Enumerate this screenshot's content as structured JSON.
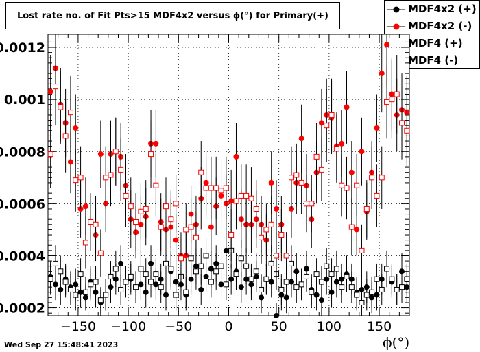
{
  "chart_data": {
    "type": "scatter",
    "title": "Lost rate no. of Fit Pts>15 MDF4x2 versus ϕ(°) for Primary(+)",
    "xlabel": "ϕ(°)",
    "ylabel": "",
    "xlim": [
      -180,
      180
    ],
    "ylim": [
      0.00017,
      0.00125
    ],
    "x_ticks": [
      -150,
      -100,
      -50,
      0,
      50,
      100,
      150
    ],
    "x_tick_labels": [
      "−150",
      "−100",
      "−50",
      "0",
      "50",
      "100",
      "150"
    ],
    "y_ticks": [
      0.0002,
      0.0004,
      0.0006,
      0.0008,
      0.001,
      0.0012
    ],
    "y_tick_labels": [
      "0.0002",
      "0.0004",
      "0.0006",
      "0.0008",
      "0.001",
      "0.0012"
    ],
    "grid": true,
    "legend_position": "top-right",
    "series": [
      {
        "name": "MDF4x2 (+)",
        "marker": "filled-circle",
        "color": "#000000",
        "x": [
          -177.5,
          -172.5,
          -167.5,
          -162.5,
          -157.5,
          -152.5,
          -147.5,
          -142.5,
          -137.5,
          -132.5,
          -127.5,
          -122.5,
          -117.5,
          -112.5,
          -107.5,
          -102.5,
          -97.5,
          -92.5,
          -87.5,
          -82.5,
          -77.5,
          -72.5,
          -67.5,
          -62.5,
          -57.5,
          -52.5,
          -47.5,
          -42.5,
          -37.5,
          -32.5,
          -27.5,
          -22.5,
          -17.5,
          -12.5,
          -7.5,
          -2.5,
          2.5,
          7.5,
          12.5,
          17.5,
          22.5,
          27.5,
          32.5,
          37.5,
          42.5,
          47.5,
          52.5,
          57.5,
          62.5,
          67.5,
          72.5,
          77.5,
          82.5,
          87.5,
          92.5,
          97.5,
          102.5,
          107.5,
          112.5,
          117.5,
          122.5,
          127.5,
          132.5,
          137.5,
          142.5,
          147.5,
          152.5,
          157.5,
          162.5,
          167.5,
          172.5,
          177.5
        ],
        "y": [
          0.00032,
          0.00029,
          0.00027,
          0.00031,
          0.00028,
          0.00029,
          0.00026,
          0.00024,
          0.0003,
          0.00026,
          0.00022,
          0.00025,
          0.00028,
          0.00031,
          0.00037,
          0.0003,
          0.00031,
          0.00028,
          0.00029,
          0.00026,
          0.00037,
          0.00029,
          0.00031,
          0.00025,
          0.00034,
          0.0003,
          0.00029,
          0.00025,
          0.00031,
          0.00036,
          0.00027,
          0.00032,
          0.00035,
          0.00037,
          0.00029,
          0.00042,
          0.00031,
          0.00034,
          0.00028,
          0.00031,
          0.00029,
          0.00032,
          0.00024,
          0.00031,
          0.0003,
          0.00017,
          0.00025,
          0.00024,
          0.0003,
          0.00034,
          0.00029,
          0.00035,
          0.00027,
          0.00025,
          0.00023,
          0.00031,
          0.00026,
          0.0003,
          0.00031,
          0.00033,
          0.00031,
          0.00026,
          0.00027,
          0.00028,
          0.00024,
          0.00025,
          0.00031,
          0.00035,
          0.0003,
          0.00027,
          0.00034,
          0.00028
        ],
        "err": [
          6e-05,
          6e-05,
          6e-05,
          6e-05,
          6e-05,
          6e-05,
          6e-05,
          5e-05,
          6e-05,
          6e-05,
          5e-05,
          6e-05,
          6e-05,
          6e-05,
          7e-05,
          6e-05,
          6e-05,
          6e-05,
          6e-05,
          6e-05,
          7e-05,
          6e-05,
          6e-05,
          6e-05,
          7e-05,
          6e-05,
          6e-05,
          6e-05,
          6e-05,
          7e-05,
          6e-05,
          6e-05,
          7e-05,
          7e-05,
          6e-05,
          7e-05,
          6e-05,
          7e-05,
          6e-05,
          6e-05,
          6e-05,
          6e-05,
          6e-05,
          6e-05,
          6e-05,
          5e-05,
          6e-05,
          6e-05,
          6e-05,
          7e-05,
          6e-05,
          7e-05,
          6e-05,
          6e-05,
          6e-05,
          6e-05,
          6e-05,
          6e-05,
          6e-05,
          7e-05,
          6e-05,
          6e-05,
          6e-05,
          6e-05,
          6e-05,
          6e-05,
          6e-05,
          7e-05,
          6e-05,
          6e-05,
          7e-05,
          6e-05
        ]
      },
      {
        "name": "MDF4x2 (-)",
        "marker": "filled-circle",
        "color": "#ff0000",
        "x": [
          -177.5,
          -172.5,
          -167.5,
          -162.5,
          -157.5,
          -152.5,
          -147.5,
          -142.5,
          -137.5,
          -132.5,
          -127.5,
          -122.5,
          -117.5,
          -112.5,
          -107.5,
          -102.5,
          -97.5,
          -92.5,
          -87.5,
          -82.5,
          -77.5,
          -72.5,
          -67.5,
          -62.5,
          -57.5,
          -52.5,
          -47.5,
          -42.5,
          -37.5,
          -32.5,
          -27.5,
          -22.5,
          -17.5,
          -12.5,
          -7.5,
          -2.5,
          2.5,
          7.5,
          12.5,
          17.5,
          22.5,
          27.5,
          32.5,
          37.5,
          42.5,
          47.5,
          52.5,
          57.5,
          62.5,
          67.5,
          72.5,
          77.5,
          82.5,
          87.5,
          92.5,
          97.5,
          102.5,
          107.5,
          112.5,
          117.5,
          122.5,
          127.5,
          132.5,
          137.5,
          142.5,
          147.5,
          152.5,
          157.5,
          162.5,
          167.5,
          172.5,
          177.5
        ],
        "y": [
          0.00103,
          0.00112,
          0.00098,
          0.00091,
          0.00076,
          0.00089,
          0.00058,
          0.00059,
          0.00053,
          0.00048,
          0.00079,
          0.0006,
          0.00079,
          0.0008,
          0.00078,
          0.00067,
          0.00054,
          0.00049,
          0.00052,
          0.00055,
          0.00083,
          0.00083,
          0.00053,
          0.0005,
          0.00051,
          0.00046,
          0.0004,
          0.0004,
          0.00056,
          0.00052,
          0.00062,
          0.00068,
          0.00051,
          0.00059,
          0.00063,
          0.0006,
          0.00061,
          0.00078,
          0.00054,
          0.00052,
          0.00052,
          0.00054,
          0.00052,
          0.00046,
          0.00068,
          0.00058,
          0.00052,
          0.0004,
          0.00058,
          0.00068,
          0.00085,
          0.00067,
          0.00054,
          0.00072,
          0.00091,
          0.00094,
          0.00093,
          0.00082,
          0.00083,
          0.00097,
          0.00072,
          0.0005,
          0.0008,
          0.00057,
          0.00072,
          0.00089,
          0.0011,
          0.00121,
          0.00102,
          0.00094,
          0.00096,
          0.00095
        ],
        "err": [
          0.00014,
          0.00014,
          0.00014,
          0.00013,
          0.00012,
          0.00013,
          0.00011,
          0.00011,
          0.00011,
          0.0001,
          0.00013,
          0.00011,
          0.00013,
          0.00013,
          0.00013,
          0.00012,
          0.00011,
          0.0001,
          0.00011,
          0.00011,
          0.00013,
          0.00013,
          0.00011,
          0.0001,
          0.00011,
          0.0001,
          9e-05,
          9e-05,
          0.00011,
          0.00011,
          0.00012,
          0.00012,
          0.00011,
          0.00011,
          0.00012,
          0.00011,
          0.00012,
          0.00013,
          0.00011,
          0.00011,
          0.00011,
          0.00011,
          0.00011,
          0.0001,
          0.00012,
          0.00011,
          0.00011,
          9e-05,
          0.00011,
          0.00012,
          0.00013,
          0.00012,
          0.00011,
          0.00012,
          0.00013,
          0.00014,
          0.00014,
          0.00013,
          0.00013,
          0.00014,
          0.00012,
          0.0001,
          0.00013,
          0.00011,
          0.00012,
          0.00013,
          0.00015,
          0.00016,
          0.00014,
          0.00014,
          0.00014,
          0.00014
        ]
      },
      {
        "name": "MDF4 (+)",
        "marker": "open-square",
        "color": "#000000",
        "x": [
          -177.5,
          -172.5,
          -167.5,
          -162.5,
          -157.5,
          -152.5,
          -147.5,
          -142.5,
          -137.5,
          -132.5,
          -127.5,
          -122.5,
          -117.5,
          -112.5,
          -107.5,
          -102.5,
          -97.5,
          -92.5,
          -87.5,
          -82.5,
          -77.5,
          -72.5,
          -67.5,
          -62.5,
          -57.5,
          -52.5,
          -47.5,
          -42.5,
          -37.5,
          -32.5,
          -27.5,
          -22.5,
          -17.5,
          -12.5,
          -7.5,
          -2.5,
          2.5,
          7.5,
          12.5,
          17.5,
          22.5,
          27.5,
          32.5,
          37.5,
          42.5,
          47.5,
          52.5,
          57.5,
          62.5,
          67.5,
          72.5,
          77.5,
          82.5,
          87.5,
          92.5,
          97.5,
          102.5,
          107.5,
          112.5,
          117.5,
          122.5,
          127.5,
          132.5,
          137.5,
          142.5,
          147.5,
          152.5,
          157.5,
          162.5,
          167.5,
          172.5,
          177.5
        ],
        "y": [
          0.00031,
          0.00037,
          0.00034,
          0.0003,
          0.00027,
          0.00025,
          0.00033,
          0.00026,
          0.00029,
          0.0003,
          0.00023,
          0.00025,
          0.00032,
          0.00035,
          0.00027,
          0.0003,
          0.00032,
          0.00028,
          0.00035,
          0.00033,
          0.0003,
          0.00033,
          0.00028,
          0.00037,
          0.00035,
          0.00025,
          0.00032,
          0.00026,
          0.00039,
          0.00034,
          0.00036,
          0.0004,
          0.0003,
          0.00034,
          0.00036,
          0.00029,
          0.00042,
          0.00033,
          0.00039,
          0.00036,
          0.00031,
          0.00034,
          0.00027,
          0.00031,
          0.00037,
          0.00033,
          0.00027,
          0.0003,
          0.00037,
          0.00028,
          0.00029,
          0.00032,
          0.00026,
          0.00033,
          0.0003,
          0.00036,
          0.00033,
          0.00035,
          0.00028,
          0.00032,
          0.00028,
          0.00025,
          0.00022,
          0.00025,
          0.00026,
          0.00031,
          0.00027,
          0.00035,
          0.00031,
          0.00027,
          0.00028,
          0.00031
        ],
        "err": [
          6e-05,
          7e-05,
          6e-05,
          6e-05,
          6e-05,
          6e-05,
          6e-05,
          6e-05,
          6e-05,
          6e-05,
          5e-05,
          6e-05,
          6e-05,
          7e-05,
          6e-05,
          6e-05,
          6e-05,
          6e-05,
          7e-05,
          6e-05,
          6e-05,
          6e-05,
          6e-05,
          7e-05,
          7e-05,
          6e-05,
          6e-05,
          6e-05,
          7e-05,
          7e-05,
          7e-05,
          7e-05,
          6e-05,
          7e-05,
          7e-05,
          6e-05,
          7e-05,
          6e-05,
          7e-05,
          7e-05,
          6e-05,
          7e-05,
          6e-05,
          6e-05,
          7e-05,
          6e-05,
          6e-05,
          6e-05,
          7e-05,
          6e-05,
          6e-05,
          6e-05,
          6e-05,
          6e-05,
          6e-05,
          7e-05,
          6e-05,
          7e-05,
          6e-05,
          6e-05,
          6e-05,
          6e-05,
          5e-05,
          6e-05,
          6e-05,
          6e-05,
          6e-05,
          7e-05,
          6e-05,
          6e-05,
          6e-05,
          6e-05
        ]
      },
      {
        "name": "MDF4 (-)",
        "marker": "open-square",
        "color": "#ff0000",
        "x": [
          -177.5,
          -172.5,
          -167.5,
          -162.5,
          -157.5,
          -152.5,
          -147.5,
          -142.5,
          -137.5,
          -132.5,
          -127.5,
          -122.5,
          -117.5,
          -112.5,
          -107.5,
          -102.5,
          -97.5,
          -92.5,
          -87.5,
          -82.5,
          -77.5,
          -72.5,
          -67.5,
          -62.5,
          -57.5,
          -52.5,
          -47.5,
          -42.5,
          -37.5,
          -32.5,
          -27.5,
          -22.5,
          -17.5,
          -12.5,
          -7.5,
          -2.5,
          2.5,
          7.5,
          12.5,
          17.5,
          22.5,
          27.5,
          32.5,
          37.5,
          42.5,
          47.5,
          52.5,
          57.5,
          62.5,
          67.5,
          72.5,
          77.5,
          82.5,
          87.5,
          92.5,
          97.5,
          102.5,
          107.5,
          112.5,
          117.5,
          122.5,
          127.5,
          132.5,
          137.5,
          142.5,
          147.5,
          152.5,
          157.5,
          162.5,
          167.5,
          172.5,
          177.5
        ],
        "y": [
          0.00079,
          0.00105,
          0.00097,
          0.00086,
          0.00095,
          0.00069,
          0.0007,
          0.00045,
          0.00053,
          0.00052,
          0.00041,
          0.0007,
          0.00071,
          0.0008,
          0.00073,
          0.00063,
          0.00059,
          0.00053,
          0.00057,
          0.00058,
          0.00079,
          0.00067,
          0.00051,
          0.00059,
          0.00054,
          0.0006,
          0.00039,
          0.0005,
          0.00051,
          0.00047,
          0.00072,
          0.00066,
          0.00066,
          0.00066,
          0.00065,
          0.00066,
          0.00048,
          0.00061,
          0.00063,
          0.00063,
          0.00062,
          0.00058,
          0.00047,
          0.0005,
          0.00052,
          0.0004,
          0.00048,
          0.0004,
          0.0007,
          0.00071,
          0.00068,
          0.0006,
          0.0006,
          0.00078,
          0.00073,
          0.0009,
          0.00094,
          0.00081,
          0.00067,
          0.00066,
          0.00051,
          0.00067,
          0.00042,
          0.00058,
          0.0007,
          0.00063,
          0.0007,
          0.00099,
          0.001,
          0.00102,
          0.00091,
          0.00088
        ],
        "err": [
          0.00013,
          0.00015,
          0.00014,
          0.00014,
          0.00014,
          0.00012,
          0.00012,
          0.0001,
          0.00011,
          0.00011,
          9e-05,
          0.00012,
          0.00012,
          0.00013,
          0.00012,
          0.00012,
          0.00011,
          0.00011,
          0.00011,
          0.00011,
          0.00013,
          0.00012,
          0.00011,
          0.00011,
          0.00011,
          0.00011,
          9e-05,
          0.0001,
          0.00011,
          0.0001,
          0.00012,
          0.00012,
          0.00012,
          0.00012,
          0.00012,
          0.00012,
          0.0001,
          0.00011,
          0.00012,
          0.00012,
          0.00012,
          0.00011,
          0.0001,
          0.0001,
          0.00011,
          9e-05,
          0.0001,
          9e-05,
          0.00012,
          0.00012,
          0.00012,
          0.00011,
          0.00011,
          0.00013,
          0.00012,
          0.00014,
          0.00014,
          0.00013,
          0.00012,
          0.00012,
          0.00011,
          0.00012,
          0.0001,
          0.00011,
          0.00012,
          0.00012,
          0.00012,
          0.00014,
          0.00015,
          0.00015,
          0.00014,
          0.00014
        ]
      }
    ],
    "timestamp": "Wed Sep 27 15:48:41 2023"
  }
}
